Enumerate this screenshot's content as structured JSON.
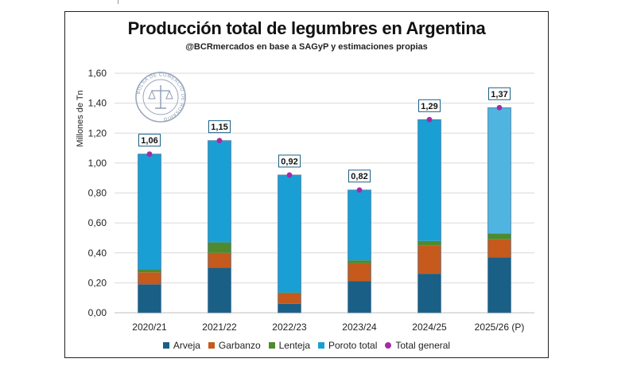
{
  "chart_data": {
    "type": "bar",
    "stacked": true,
    "title": "Producción total de legumbres en Argentina",
    "subtitle": "@BCRmercados en base a SAGyP y estimaciones propias",
    "ylabel": "Millones de Tn",
    "xlabel": "",
    "ylim": [
      0,
      1.6
    ],
    "yticks": [
      "0,00",
      "0,20",
      "0,40",
      "0,60",
      "0,80",
      "1,00",
      "1,20",
      "1,40",
      "1,60"
    ],
    "categories": [
      "2020/21",
      "2021/22",
      "2022/23",
      "2023/24",
      "2024/25",
      "2025/26 (P)"
    ],
    "series": [
      {
        "name": "Arveja",
        "color": "#1a5f85",
        "values": [
          0.19,
          0.3,
          0.06,
          0.21,
          0.26,
          0.37
        ]
      },
      {
        "name": "Garbanzo",
        "color": "#c55a1c",
        "values": [
          0.08,
          0.1,
          0.07,
          0.12,
          0.19,
          0.12
        ]
      },
      {
        "name": "Lenteja",
        "color": "#4f8a2e",
        "values": [
          0.02,
          0.07,
          0.005,
          0.02,
          0.03,
          0.04
        ]
      },
      {
        "name": "Poroto total",
        "color": "#1a9fd5",
        "values": [
          0.77,
          0.68,
          0.785,
          0.47,
          0.81,
          0.84
        ]
      }
    ],
    "total": {
      "name": "Total general",
      "color": "#a52aa5",
      "values": [
        1.06,
        1.15,
        0.92,
        0.82,
        1.29,
        1.37
      ],
      "labels": [
        "1,06",
        "1,15",
        "0,92",
        "0,82",
        "1,29",
        "1,37"
      ]
    },
    "legend_position": "bottom",
    "grid": true
  },
  "watermark": {
    "text": "BOLSA DE COMERCIO DE ROSARIO"
  }
}
